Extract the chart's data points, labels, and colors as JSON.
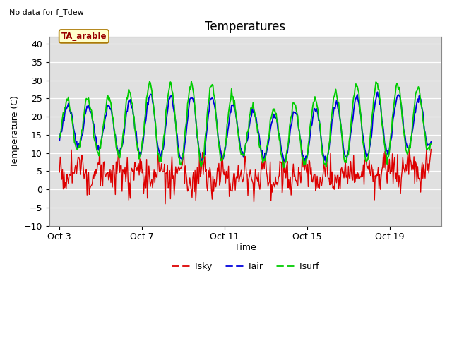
{
  "title": "Temperatures",
  "subtitle": "No data for f_Tdew",
  "xlabel": "Time",
  "ylabel": "Temperature (C)",
  "ylim": [
    -10,
    42
  ],
  "yticks": [
    -10,
    -5,
    0,
    5,
    10,
    15,
    20,
    25,
    30,
    35,
    40
  ],
  "xtick_labels": [
    "Oct 3",
    "Oct 7",
    "Oct 11",
    "Oct 15",
    "Oct 19"
  ],
  "xtick_positions": [
    0,
    4,
    8,
    12,
    16
  ],
  "xlim": [
    -0.5,
    18.5
  ],
  "box_label": "TA_arable",
  "legend_entries": [
    "Tsky",
    "Tair",
    "Tsurf"
  ],
  "legend_colors": [
    "#dd0000",
    "#0000dd",
    "#00cc00"
  ],
  "line_colors_sky": "#dd0000",
  "line_colors_air": "#0000dd",
  "line_colors_surf": "#00cc00",
  "fig_bg": "#ffffff",
  "plot_bg": "#e0e0e0",
  "title_fontsize": 12,
  "label_fontsize": 9,
  "tick_fontsize": 9,
  "num_points": 500,
  "x_start": 0,
  "x_end": 18
}
